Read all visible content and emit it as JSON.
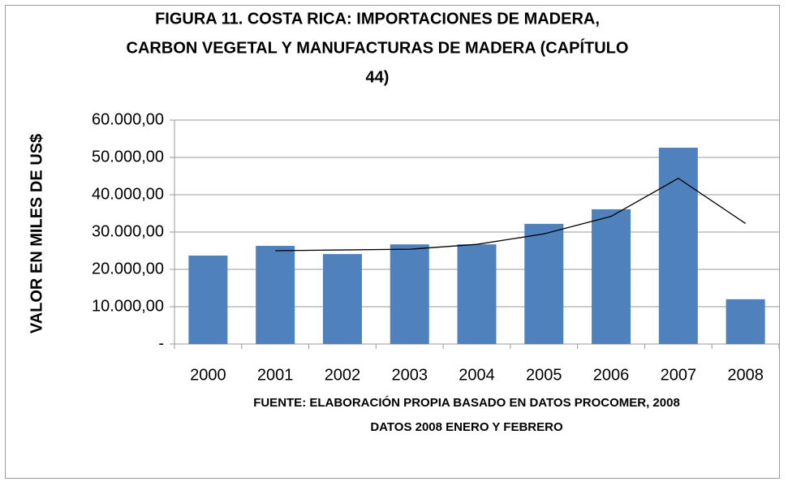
{
  "chart_data": {
    "type": "bar",
    "title": [
      "FIGURA 11. COSTA RICA: IMPORTACIONES DE MADERA,",
      "CARBON VEGETAL Y MANUFACTURAS DE MADERA (CAPÍTULO",
      "44)"
    ],
    "y_label": "VALOR EN MILES DE US$",
    "notes": [
      "FUENTE: ELABORACIÓN PROPIA BASADO EN DATOS PROCOMER, 2008",
      "DATOS 2008 ENERO Y FEBRERO"
    ],
    "categories": [
      "2000",
      "2001",
      "2002",
      "2003",
      "2004",
      "2005",
      "2006",
      "2007",
      "2008"
    ],
    "values": [
      23700,
      26300,
      24100,
      26700,
      26700,
      32200,
      36100,
      52600,
      12000
    ],
    "trend_values": [
      null,
      25000,
      25200,
      25400,
      26700,
      29500,
      34200,
      44400,
      32300
    ],
    "color": "#4f81bd",
    "trend_color": "#000000",
    "ylim": [
      0,
      60000
    ],
    "yticks": [
      {
        "value": 0,
        "label": "-"
      },
      {
        "value": 10000,
        "label": "10.000,00"
      },
      {
        "value": 20000,
        "label": "20.000,00"
      },
      {
        "value": 30000,
        "label": "30.000,00"
      },
      {
        "value": 40000,
        "label": "40.000,00"
      },
      {
        "value": 50000,
        "label": "50.000,00"
      },
      {
        "value": 60000,
        "label": "60.000,00"
      }
    ],
    "grid": true
  }
}
